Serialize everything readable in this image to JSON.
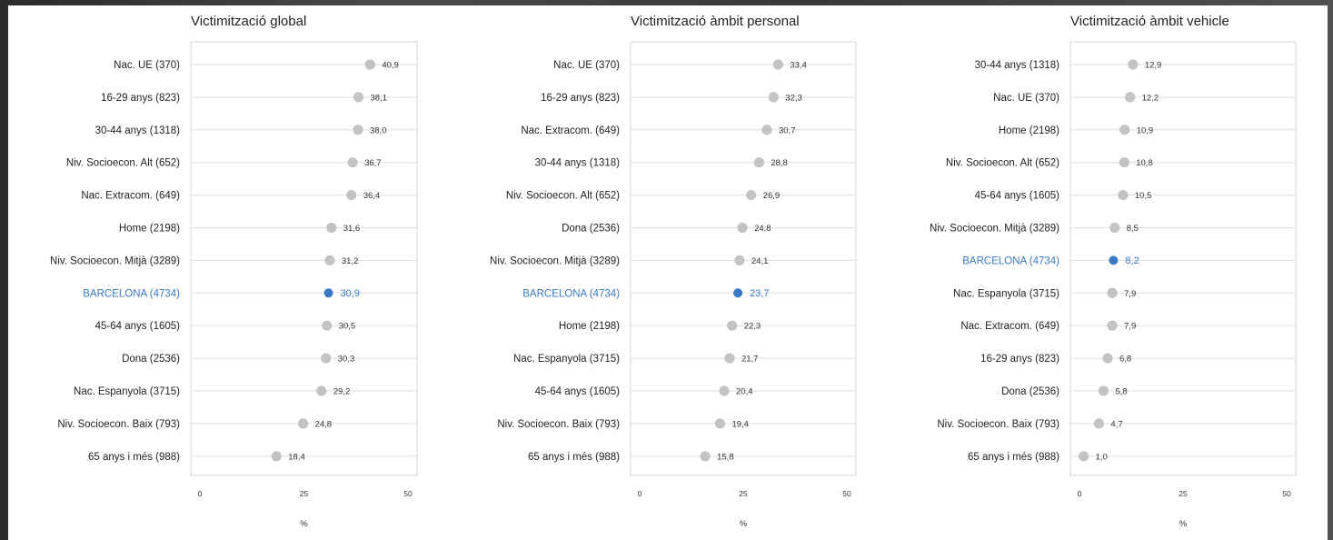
{
  "colors": {
    "point": "#c3c3c3",
    "highlight": "#3a78c3",
    "grid": "#dedede",
    "border": "#d4d4d4"
  },
  "chart_data": [
    {
      "type": "scatter",
      "title": "Victimització global",
      "xlabel": "%",
      "xlim": [
        0,
        50
      ],
      "xticks": [
        "0",
        "25",
        "50"
      ],
      "highlight": "BARCELONA (4734)",
      "categories": [
        "Nac. UE (370)",
        "16-29 anys (823)",
        "30-44 anys (1318)",
        "Niv. Socioecon. Alt (652)",
        "Nac. Extracom. (649)",
        "Home (2198)",
        "Niv. Socioecon. Mitjà (3289)",
        "BARCELONA (4734)",
        "45-64 anys (1605)",
        "Dona (2536)",
        "Nac. Espanyola (3715)",
        "Niv. Socioecon. Baix (793)",
        "65 anys i més (988)"
      ],
      "values": [
        40.9,
        38.1,
        38.0,
        36.7,
        36.4,
        31.6,
        31.2,
        30.9,
        30.5,
        30.3,
        29.2,
        24.8,
        18.4
      ],
      "labels": [
        "40,9",
        "38,1",
        "38,0",
        "36,7",
        "36,4",
        "31,6",
        "31,2",
        "30,9",
        "30,5",
        "30,3",
        "29,2",
        "24,8",
        "18,4"
      ]
    },
    {
      "type": "scatter",
      "title": "Victimització àmbit personal",
      "xlabel": "%",
      "xlim": [
        0,
        50
      ],
      "xticks": [
        "0",
        "25",
        "50"
      ],
      "highlight": "BARCELONA (4734)",
      "categories": [
        "Nac. UE (370)",
        "16-29 anys (823)",
        "Nac. Extracom. (649)",
        "30-44 anys (1318)",
        "Niv. Socioecon. Alt (652)",
        "Dona (2536)",
        "Niv. Socioecon. Mitjà (3289)",
        "BARCELONA (4734)",
        "Home (2198)",
        "Nac. Espanyola (3715)",
        "45-64 anys (1605)",
        "Niv. Socioecon. Baix (793)",
        "65 anys i més (988)"
      ],
      "values": [
        33.4,
        32.3,
        30.7,
        28.8,
        26.9,
        24.8,
        24.1,
        23.7,
        22.3,
        21.7,
        20.4,
        19.4,
        15.8
      ],
      "labels": [
        "33,4",
        "32,3",
        "30,7",
        "28,8",
        "26,9",
        "24,8",
        "24,1",
        "23,7",
        "22,3",
        "21,7",
        "20,4",
        "19,4",
        "15,8"
      ]
    },
    {
      "type": "scatter",
      "title": "Victimització àmbit vehicle",
      "xlabel": "%",
      "xlim": [
        0,
        50
      ],
      "xticks": [
        "0",
        "25",
        "50"
      ],
      "highlight": "BARCELONA (4734)",
      "categories": [
        "30-44 anys (1318)",
        "Nac. UE (370)",
        "Home (2198)",
        "Niv. Socioecon. Alt (652)",
        "45-64 anys (1605)",
        "Niv. Socioecon. Mitjà (3289)",
        "BARCELONA (4734)",
        "Nac. Espanyola (3715)",
        "Nac. Extracom. (649)",
        "16-29 anys (823)",
        "Dona (2536)",
        "Niv. Socioecon. Baix (793)",
        "65 anys i més (988)"
      ],
      "values": [
        12.9,
        12.2,
        10.9,
        10.8,
        10.5,
        8.5,
        8.2,
        7.9,
        7.9,
        6.8,
        5.8,
        4.7,
        1.0
      ],
      "labels": [
        "12,9",
        "12,2",
        "10,9",
        "10,8",
        "10,5",
        "8,5",
        "8,2",
        "7,9",
        "7,9",
        "6,8",
        "5,8",
        "4,7",
        "1,0"
      ]
    }
  ]
}
